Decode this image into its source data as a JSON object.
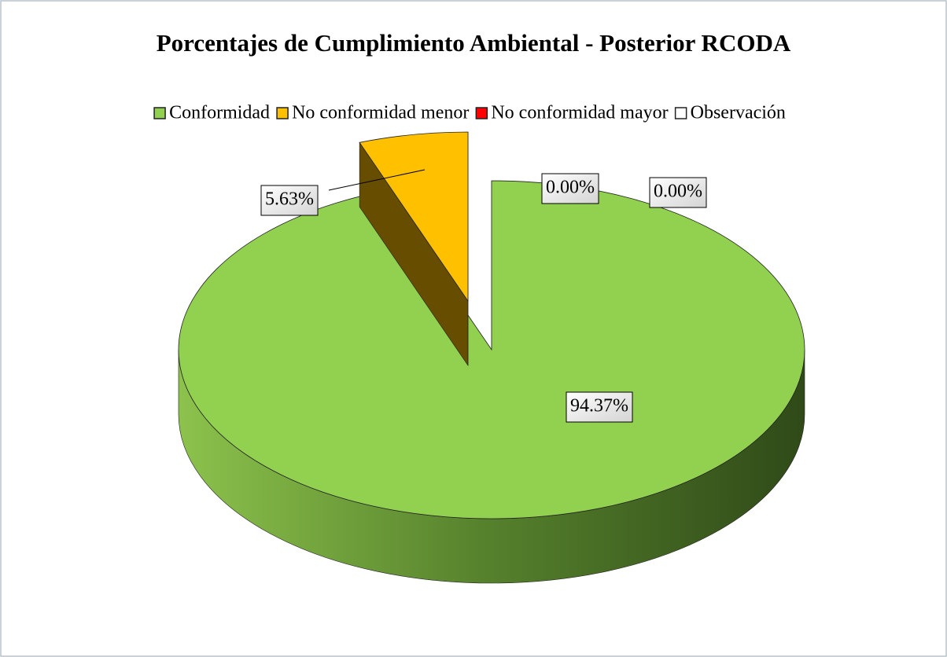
{
  "chart_data": {
    "type": "pie",
    "title": "Porcentajes de Cumplimiento Ambiental - Posterior RCODA",
    "categories": [
      "Conformidad",
      "No conformidad menor",
      "No conformidad mayor",
      "Observación"
    ],
    "values": [
      94.37,
      5.63,
      0,
      0
    ],
    "value_labels": [
      "94.37%",
      "5.63%",
      "0.00%",
      "0.00%"
    ],
    "colors": [
      "#92d050",
      "#ffc000",
      "#ff0000",
      "#ffffff"
    ],
    "legend": "top"
  }
}
